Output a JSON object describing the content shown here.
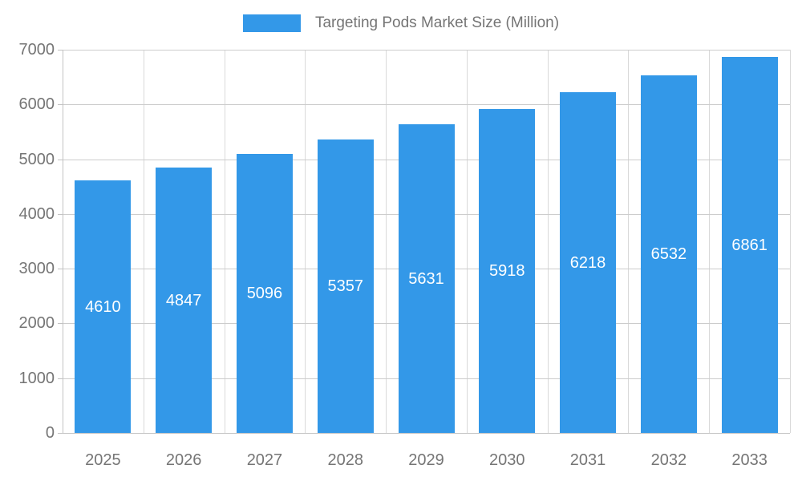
{
  "legend": {
    "label": "Targeting Pods Market Size (Million)"
  },
  "colors": {
    "bar": "#3398e8",
    "value_label": "#ffffff",
    "axis_text": "#757575",
    "gridline": "#cccccc"
  },
  "chart_data": {
    "type": "bar",
    "title": "Targeting Pods Market Size (Million)",
    "categories": [
      "2025",
      "2026",
      "2027",
      "2028",
      "2029",
      "2030",
      "2031",
      "2032",
      "2033"
    ],
    "values": [
      4610,
      4847,
      5096,
      5357,
      5631,
      5918,
      6218,
      6532,
      6861
    ],
    "xlabel": "",
    "ylabel": "",
    "ylim": [
      0,
      7000
    ],
    "yticks": [
      0,
      1000,
      2000,
      3000,
      4000,
      5000,
      6000,
      7000
    ],
    "grid": true,
    "legend_position": "top"
  }
}
